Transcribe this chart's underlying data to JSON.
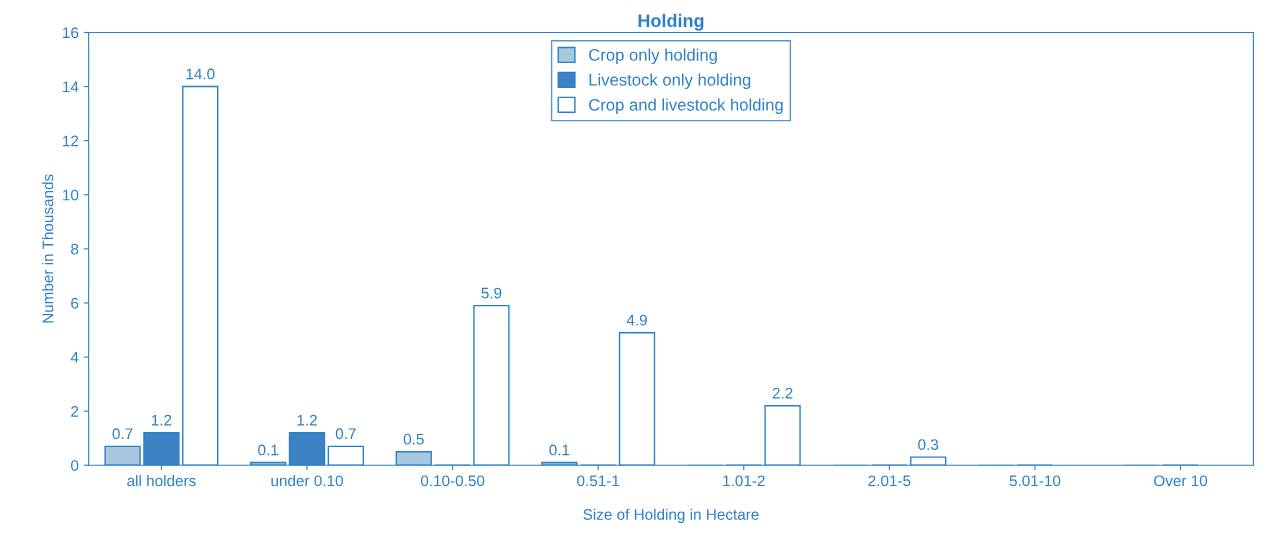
{
  "chart_data": {
    "type": "bar",
    "title": "Holding",
    "xlabel": "Size of Holding in Hectare",
    "ylabel": "Number in Thousands",
    "categories": [
      "all holders",
      "under 0.10",
      "0.10-0.50",
      "0.51-1",
      "1.01-2",
      "2.01-5",
      "5.01-10",
      "Over 10"
    ],
    "series": [
      {
        "name": "Crop only holding",
        "color": "#a8c8e0",
        "values": [
          0.7,
          0.1,
          0.5,
          0.1,
          0,
          0,
          0,
          0
        ],
        "value_labels": [
          "0.7",
          "0.1",
          "0.5",
          "0.1",
          null,
          null,
          null,
          null
        ]
      },
      {
        "name": "Livestock only holding",
        "color": "#3c82c4",
        "values": [
          1.2,
          1.2,
          0,
          0,
          0,
          0,
          0,
          0
        ],
        "value_labels": [
          "1.2",
          "1.2",
          null,
          null,
          null,
          null,
          null,
          null
        ]
      },
      {
        "name": "Crop and livestock holding",
        "color": "#ffffff",
        "values": [
          14.0,
          0.7,
          5.9,
          4.9,
          2.2,
          0.3,
          0,
          0
        ],
        "value_labels": [
          "14.0",
          "0.7",
          "5.9",
          "4.9",
          "2.2",
          "0.3",
          null,
          null
        ]
      }
    ],
    "ylim": [
      0,
      16
    ],
    "yticks": [
      0,
      2,
      4,
      6,
      8,
      10,
      12,
      14,
      16
    ],
    "grid": false,
    "legend": "top"
  }
}
